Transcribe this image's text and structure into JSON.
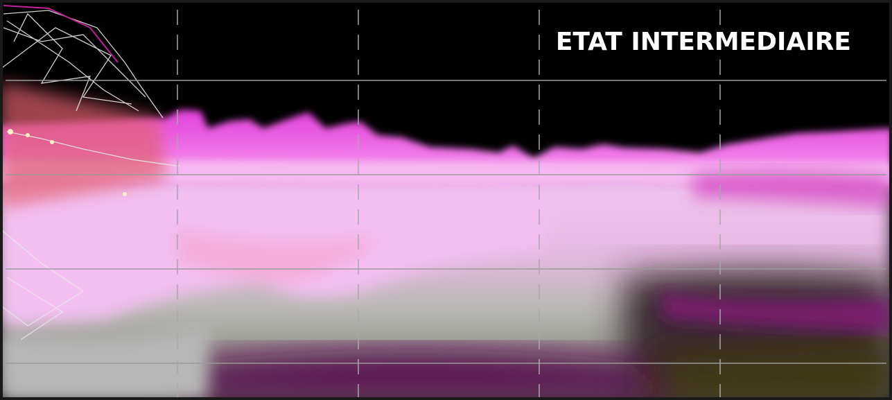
{
  "title": "ETAT INTERMEDIAIRE"
}
